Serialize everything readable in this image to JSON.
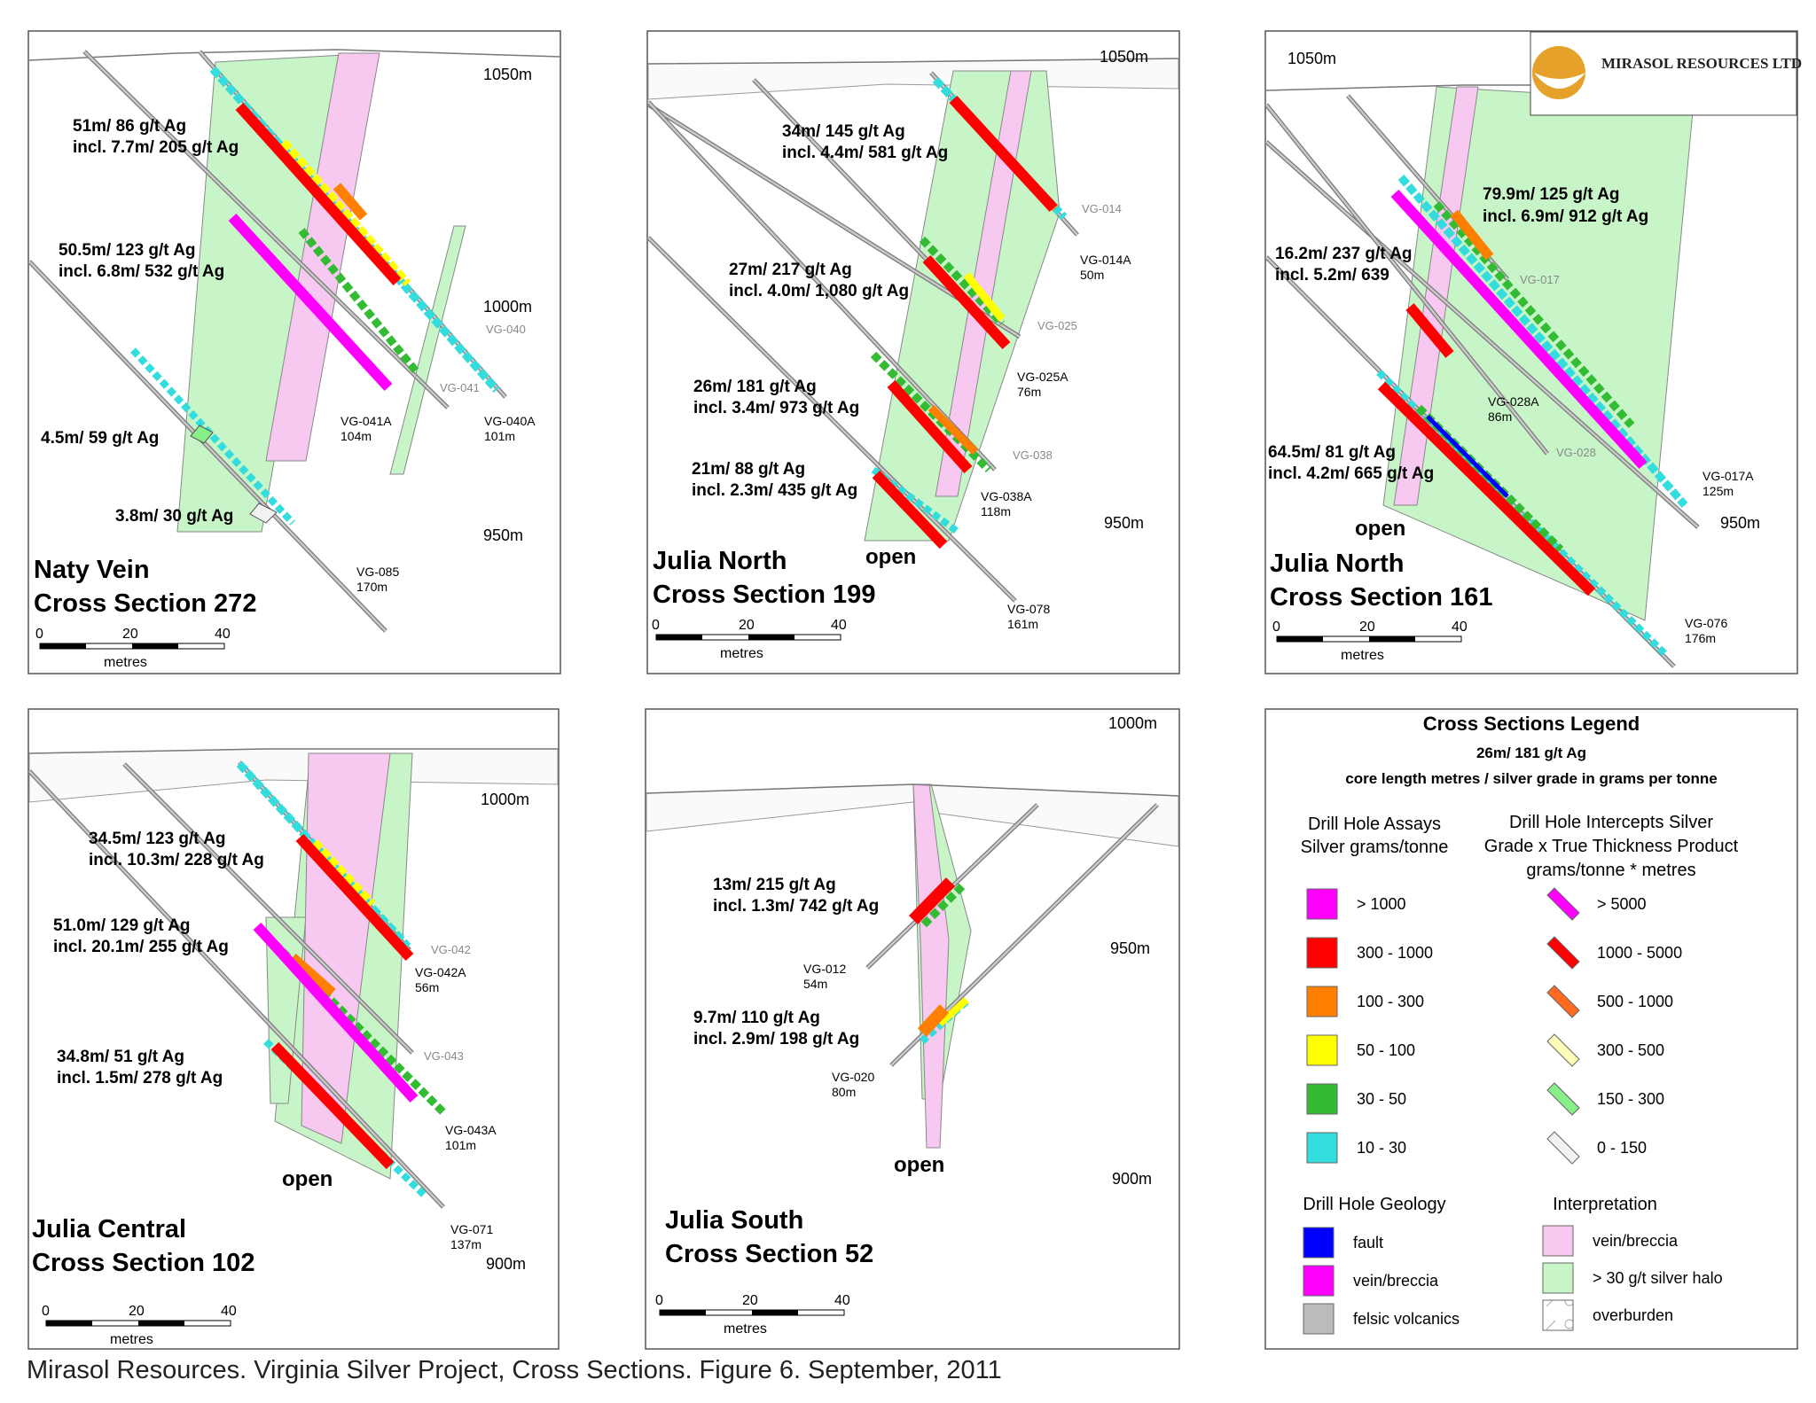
{
  "caption": "Mirasol Resources. Virginia Silver Project, Cross Sections. Figure 6. September, 2011",
  "logo": {
    "text": "MIRASOL RESOURCES LTD",
    "icon": "sun-logo-icon"
  },
  "colors": {
    "gt1000": "#ff00ff",
    "c300_1000": "#ff0000",
    "c100_300": "#ff7f00",
    "c50_100": "#ffff00",
    "c30_50": "#33bb33",
    "c10_30": "#33dddd",
    "fault": "#0000ff",
    "vein_breccia": "#ff00ff",
    "felsic": "#bbbbbb",
    "interp_vein": "#f7c8f0",
    "interp_halo": "#c8f5c8"
  },
  "scale": {
    "ticks": [
      "0",
      "20",
      "40"
    ],
    "unit": "metres"
  },
  "panels": [
    {
      "title1": "Naty Vein",
      "title2": "Cross Section 272",
      "elevations": [
        "1050m",
        "1000m",
        "950m"
      ],
      "intercepts": [
        {
          "l1": "51m/ 86 g/t Ag",
          "l2": "incl. 7.7m/ 205 g/t Ag"
        },
        {
          "l1": "50.5m/ 123 g/t Ag",
          "l2": "incl. 6.8m/ 532 g/t Ag"
        },
        {
          "l1": "4.5m/ 59 g/t Ag",
          "l2": ""
        },
        {
          "l1": "3.8m/ 30 g/t Ag",
          "l2": ""
        }
      ],
      "holes": [
        {
          "id": "VG-040",
          "len": ""
        },
        {
          "id": "VG-041",
          "len": ""
        },
        {
          "id": "VG-041A",
          "len": "104m"
        },
        {
          "id": "VG-040A",
          "len": "101m"
        },
        {
          "id": "VG-085",
          "len": "170m"
        }
      ],
      "open": ""
    },
    {
      "title1": "Julia North",
      "title2": "Cross Section 199",
      "elevations": [
        "1050m",
        "950m"
      ],
      "intercepts": [
        {
          "l1": "34m/ 145 g/t Ag",
          "l2": "incl. 4.4m/ 581 g/t Ag"
        },
        {
          "l1": "27m/ 217 g/t Ag",
          "l2": "incl. 4.0m/ 1,080 g/t Ag"
        },
        {
          "l1": "26m/ 181 g/t Ag",
          "l2": "incl. 3.4m/ 973 g/t Ag"
        },
        {
          "l1": "21m/ 88 g/t Ag",
          "l2": "incl. 2.3m/ 435 g/t Ag"
        }
      ],
      "holes": [
        {
          "id": "VG-014",
          "len": ""
        },
        {
          "id": "VG-014A",
          "len": "50m"
        },
        {
          "id": "VG-025",
          "len": ""
        },
        {
          "id": "VG-025A",
          "len": "76m"
        },
        {
          "id": "VG-038",
          "len": ""
        },
        {
          "id": "VG-038A",
          "len": "118m"
        },
        {
          "id": "VG-078",
          "len": "161m"
        }
      ],
      "open": "open"
    },
    {
      "title1": "Julia North",
      "title2": "Cross Section 161",
      "elevations": [
        "1050m",
        "950m"
      ],
      "intercepts": [
        {
          "l1": "79.9m/ 125 g/t Ag",
          "l2": "incl. 6.9m/ 912 g/t Ag"
        },
        {
          "l1": "16.2m/ 237 g/t Ag",
          "l2": "incl. 5.2m/ 639"
        },
        {
          "l1": "64.5m/ 81 g/t Ag",
          "l2": "incl. 4.2m/ 665 g/t Ag"
        }
      ],
      "holes": [
        {
          "id": "VG-017",
          "len": ""
        },
        {
          "id": "VG-028A",
          "len": "86m"
        },
        {
          "id": "VG-028",
          "len": ""
        },
        {
          "id": "VG-017A",
          "len": "125m"
        },
        {
          "id": "VG-076",
          "len": "176m"
        }
      ],
      "open": "open"
    },
    {
      "title1": "Julia Central",
      "title2": "Cross Section 102",
      "elevations": [
        "1000m",
        "900m"
      ],
      "intercepts": [
        {
          "l1": "34.5m/ 123 g/t Ag",
          "l2": "incl. 10.3m/ 228 g/t Ag"
        },
        {
          "l1": "51.0m/ 129 g/t Ag",
          "l2": "incl. 20.1m/ 255 g/t Ag"
        },
        {
          "l1": "34.8m/ 51 g/t Ag",
          "l2": "incl. 1.5m/ 278 g/t Ag"
        }
      ],
      "holes": [
        {
          "id": "VG-042",
          "len": ""
        },
        {
          "id": "VG-042A",
          "len": "56m"
        },
        {
          "id": "VG-043",
          "len": ""
        },
        {
          "id": "VG-043A",
          "len": "101m"
        },
        {
          "id": "VG-071",
          "len": "137m"
        }
      ],
      "open": "open"
    },
    {
      "title1": "Julia South",
      "title2": "Cross Section 52",
      "elevations": [
        "1000m",
        "950m",
        "900m"
      ],
      "intercepts": [
        {
          "l1": "13m/ 215 g/t Ag",
          "l2": "incl. 1.3m/ 742 g/t Ag"
        },
        {
          "l1": "9.7m/ 110 g/t Ag",
          "l2": "incl. 2.9m/ 198 g/t Ag"
        }
      ],
      "holes": [
        {
          "id": "VG-012",
          "len": "54m"
        },
        {
          "id": "VG-020",
          "len": "80m"
        }
      ],
      "open": "open"
    }
  ],
  "legend": {
    "title": "Cross Sections Legend",
    "example": "26m/ 181 g/t Ag",
    "example_desc": "core length metres / silver grade in grams per tonne",
    "assays_h1": "Drill Hole Assays",
    "assays_h2": "Silver grams/tonne",
    "assays": [
      {
        "label": "> 1000",
        "color": "#ff00ff"
      },
      {
        "label": "300 - 1000",
        "color": "#ff0000"
      },
      {
        "label": "100 - 300",
        "color": "#ff7f00"
      },
      {
        "label": "50 - 100",
        "color": "#ffff00"
      },
      {
        "label": "30 - 50",
        "color": "#33bb33"
      },
      {
        "label": "10 - 30",
        "color": "#33dddd"
      }
    ],
    "intercepts_h1": "Drill Hole Intercepts Silver",
    "intercepts_h2": "Grade x True Thickness Product",
    "intercepts_h3": "grams/tonne * metres",
    "intercepts": [
      {
        "label": "> 5000",
        "color": "#ff00ff"
      },
      {
        "label": "1000 - 5000",
        "color": "#ff0000"
      },
      {
        "label": "500 - 1000",
        "color": "#ff6a20"
      },
      {
        "label": "300 - 500",
        "color": "#ffffbb"
      },
      {
        "label": "150 - 300",
        "color": "#88ee88"
      },
      {
        "label": "0 - 150",
        "color": "#f2f2f2"
      }
    ],
    "geology_h": "Drill Hole Geology",
    "geology": [
      {
        "label": "fault",
        "color": "#0000ff"
      },
      {
        "label": "vein/breccia",
        "color": "#ff00ff"
      },
      {
        "label": "felsic volcanics",
        "color": "#bbbbbb"
      }
    ],
    "interp_h": "Interpretation",
    "interp": [
      {
        "label": "vein/breccia",
        "color": "#f7c8f0"
      },
      {
        "label": "> 30 g/t silver halo",
        "color": "#c8f5c8"
      },
      {
        "label": "overburden",
        "color": "#ffffff"
      }
    ]
  }
}
